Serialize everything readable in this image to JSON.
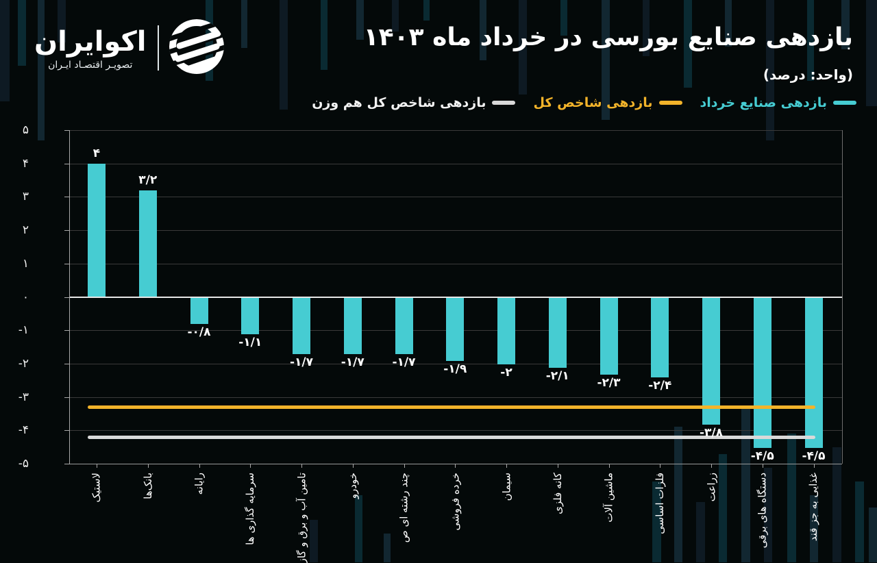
{
  "brand": {
    "name": "اکوایران",
    "tagline": "تصویـر اقتصـاد ایـران"
  },
  "header": {
    "title": "بازدهی صنایع بورسی در خرداد ماه ۱۴۰۳",
    "subtitle": "(واحد: درصد)"
  },
  "legend": {
    "items": [
      {
        "label": "بازدهی صنایع خرداد",
        "color": "#46ccd2"
      },
      {
        "label": "بازدهی شاخص کل",
        "color": "#f2b32a"
      },
      {
        "label": "بازدهی شاخص کل هم وزن",
        "color": "#d9d9d9"
      }
    ]
  },
  "chart_data": {
    "type": "bar",
    "title": "بازدهی صنایع بورسی در خرداد ماه ۱۴۰۳",
    "unit_note": "(واحد: درصد)",
    "categories": [
      "لاستیک",
      "بانک‌ها",
      "رایانه",
      "سرمایه گذاری ها",
      "تامین آب و برق و گاز",
      "خودرو",
      "چند رشته ای ص",
      "خرده فروشی",
      "سیمان",
      "کانه فلزی",
      "ماشین آلات",
      "فلزات اساسی",
      "زراعت",
      "دستگاه های برقی",
      "غذایی به جز قند"
    ],
    "series": [
      {
        "name": "بازدهی صنایع خرداد",
        "values": [
          4,
          3.2,
          -0.8,
          -1.1,
          -1.7,
          -1.7,
          -1.7,
          -1.9,
          -2,
          -2.1,
          -2.3,
          -2.4,
          -3.8,
          -4.5,
          -4.5
        ]
      }
    ],
    "value_labels": [
      "۴",
      "۳/۲",
      "-۰/۸",
      "-۱/۱",
      "-۱/۷",
      "-۱/۷",
      "-۱/۷",
      "-۱/۹",
      "-۲",
      "-۲/۱",
      "-۲/۳",
      "-۲/۴",
      "-۳/۸",
      "-۴/۵",
      "-۴/۵"
    ],
    "hlines": [
      {
        "name": "بازدهی شاخص کل",
        "value": -3.3,
        "color": "#f2b32a"
      },
      {
        "name": "بازدهی شاخص کل هم وزن",
        "value": -4.2,
        "color": "#d9d9d9"
      }
    ],
    "yticks": {
      "values": [
        5,
        4,
        3,
        2,
        1,
        0,
        -1,
        -2,
        -3,
        -4,
        -5
      ],
      "labels": [
        "۵",
        "۴",
        "۳",
        "۲",
        "۱",
        "۰",
        "-۱",
        "-۲",
        "-۳",
        "-۴",
        "-۵"
      ]
    },
    "ylim": [
      -5,
      5
    ],
    "grid": "horizontal",
    "legend_position": "top-right",
    "colors": {
      "bar": "#46ccd2",
      "total_index_line": "#f2b32a",
      "equal_weight_line": "#d9d9d9",
      "background": "#040909",
      "text": "#ffffff"
    }
  }
}
